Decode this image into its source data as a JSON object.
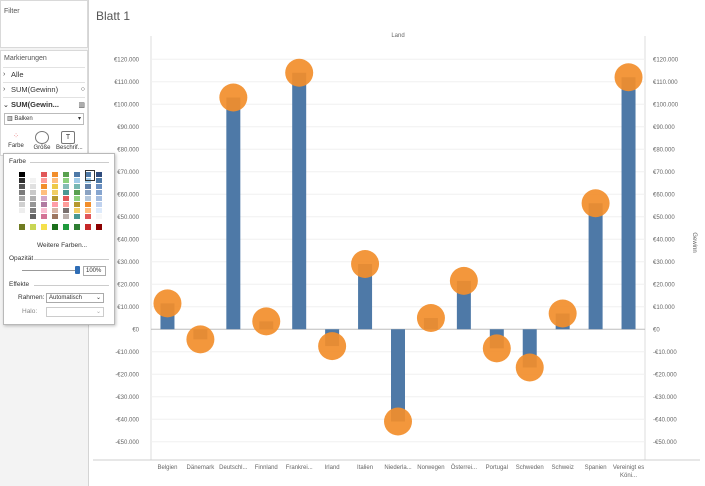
{
  "left_panel": {
    "filter_title": "Filter",
    "marks_title": "Markierungen",
    "marks_rows": [
      {
        "label": "Alle"
      },
      {
        "label": "SUM(Gewinn)"
      },
      {
        "label": "SUM(Gewin..."
      }
    ],
    "mark_type": "Balken",
    "buttons": [
      {
        "label": "Farbe",
        "icon": "color-dots-icon"
      },
      {
        "label": "Größe",
        "icon": "size-icon"
      },
      {
        "label": "Beschrif...",
        "icon": "label-icon"
      }
    ]
  },
  "color_popover": {
    "title": "Farbe",
    "more_colors": "Weitere Farben...",
    "opacity_label": "Opazität",
    "opacity_value": "100%",
    "opacity_fraction": 1.0,
    "effects_label": "Effekte",
    "border_label": "Rahmen:",
    "border_value": "Automatisch",
    "halo_label": "Halo:",
    "halo_value": "",
    "palette_columns": [
      [
        "#000000",
        "#2f2f2f",
        "#555555",
        "#7b7b7b",
        "#a6a6a6",
        "#d0d0d0",
        "#eeeeee",
        "#ffffff"
      ],
      [
        "#ffffff",
        "#f2f2f2",
        "#e0e0e0",
        "#c9c9c9",
        "#b0b0b0",
        "#969696",
        "#7c7c7c",
        "#636363"
      ],
      [
        "#e15759",
        "#ff9d9a",
        "#f28e2b",
        "#ffbe7d",
        "#d4a6c8",
        "#b07aa1",
        "#fabfd2",
        "#d37295"
      ],
      [
        "#f28e2b",
        "#ffbe7d",
        "#edc948",
        "#f1ce63",
        "#b6992d",
        "#ff9da7",
        "#d7b5a6",
        "#9d7660"
      ],
      [
        "#59a14f",
        "#8cd17d",
        "#86bcb6",
        "#499894",
        "#e15759",
        "#ff9d9a",
        "#79706e",
        "#bab0ac"
      ],
      [
        "#4e79a7",
        "#a0cbe8",
        "#76b7b2",
        "#59a14f",
        "#8cd17d",
        "#b6992d",
        "#f1ce63",
        "#499894"
      ],
      [
        "#4e79a7",
        "#a0cbe8",
        "#5f7ea6",
        "#8aa2c2",
        "#b4c7dc",
        "#f28e2b",
        "#ffbe7d",
        "#e15759"
      ],
      [
        "#2f4b7c",
        "#4e79a7",
        "#6a8fbf",
        "#86a5cf",
        "#a3bcdf",
        "#c0d2ee",
        "#ddeafb",
        "#f7f7f7"
      ]
    ],
    "bottom_row": [
      "#6f7b21",
      "#c9d654",
      "#f5e04b",
      "#1b6f1b",
      "#1f9a3c",
      "#2e7d32",
      "#c62828",
      "#8b0000"
    ]
  },
  "sheet_title": "Blatt 1",
  "chart_data": {
    "type": "bar",
    "title": "Land",
    "ylabel_right": "Gewinn",
    "ylim": [
      -55000,
      125000
    ],
    "yticks": [
      -50000,
      -40000,
      -30000,
      -20000,
      -10000,
      0,
      10000,
      20000,
      30000,
      40000,
      50000,
      60000,
      70000,
      80000,
      90000,
      100000,
      110000,
      120000
    ],
    "ytick_labels": [
      "-€50.000",
      "-€40.000",
      "-€30.000",
      "-€20.000",
      "-€10.000",
      "€0",
      "€10.000",
      "€20.000",
      "€30.000",
      "€40.000",
      "€50.000",
      "€60.000",
      "€70.000",
      "€80.000",
      "€90.000",
      "€100.000",
      "€110.000",
      "€120.000"
    ],
    "categories": [
      "Belgien",
      "Dänemark",
      "Deutschl...",
      "Finnland",
      "Frankrei...",
      "Irland",
      "Italien",
      "Niederla...",
      "Norwegen",
      "Österrei...",
      "Portugal",
      "Schweden",
      "Schweiz",
      "Spanien",
      "Vereinigt es Köni..."
    ],
    "series": [
      {
        "values": [
          11500,
          -4500,
          103000,
          3500,
          114000,
          -7500,
          29000,
          -41000,
          5000,
          21500,
          -8500,
          -17000,
          7000,
          56000,
          112000
        ],
        "color": "#4e79a7",
        "mark": "bar"
      },
      {
        "values": [
          11500,
          -4500,
          103000,
          3500,
          114000,
          -7500,
          29000,
          -41000,
          5000,
          21500,
          -8500,
          -17000,
          7000,
          56000,
          112000
        ],
        "color": "#f28e2b",
        "mark": "circle"
      }
    ],
    "grid": true
  }
}
